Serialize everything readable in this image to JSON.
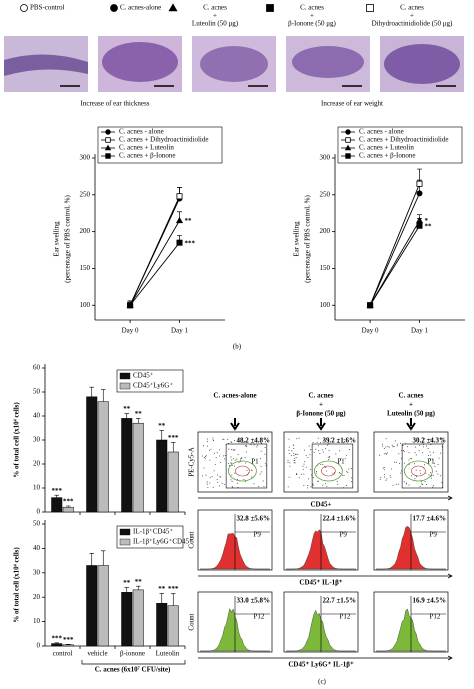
{
  "top_legend": [
    {
      "lines": [
        "PBS-control"
      ],
      "marker": "circle-open"
    },
    {
      "lines": [
        "C. acnes-alone"
      ],
      "marker": "circle"
    },
    {
      "lines": [
        "C. acnes",
        "+",
        "Luteolin (50 μg)"
      ],
      "marker": "triangle"
    },
    {
      "lines": [
        "C. acnes",
        "+",
        "β-Ionone (50 μg)"
      ],
      "marker": "square"
    },
    {
      "lines": [
        "C. acnes",
        "+",
        "Dihydroactinidiolide (50 μg)"
      ],
      "marker": "square-open"
    }
  ],
  "histology_captions": [
    "Increase of ear thickness",
    "Increase of ear weight"
  ],
  "panel_labels": [
    "(b)",
    "(c)"
  ],
  "chart_data": [
    {
      "type": "line",
      "y_label": [
        "Ear swelling",
        "(percentage of PBS control, %)"
      ],
      "categories": [
        "Day 0",
        "Day 1"
      ],
      "ylim": [
        80,
        300
      ],
      "yticks": [
        100,
        150,
        200,
        250,
        300
      ],
      "series": [
        {
          "name": "C. acnes - alone",
          "marker": "circle",
          "color": "#000",
          "values": [
            100,
            245
          ],
          "errors": [
            6,
            15
          ]
        },
        {
          "name": "C. acnes + Dihydroactinidiolide",
          "marker": "square-open",
          "color": "#000",
          "values": [
            100,
            248
          ],
          "errors": [
            6,
            12
          ]
        },
        {
          "name": "C. acnes + Luteolin",
          "marker": "triangle",
          "color": "#000",
          "values": [
            100,
            215
          ],
          "errors": [
            6,
            12
          ],
          "significance": [
            null,
            "**"
          ]
        },
        {
          "name": "C. acnes + β-Ionone",
          "marker": "square",
          "color": "#000",
          "values": [
            100,
            185
          ],
          "errors": [
            6,
            10
          ],
          "significance": [
            null,
            "***"
          ]
        }
      ]
    },
    {
      "type": "line",
      "y_label": [
        "Ear swelling",
        "(percentage of PBS control, %)"
      ],
      "categories": [
        "Day 0",
        "Day 1"
      ],
      "ylim": [
        80,
        300
      ],
      "yticks": [
        100,
        150,
        200,
        250,
        300
      ],
      "series": [
        {
          "name": "C. acnes - alone",
          "marker": "circle",
          "color": "#000",
          "values": [
            100,
            252
          ],
          "errors": [
            3,
            18
          ]
        },
        {
          "name": "C. acnes + Dihydroactinidiolide",
          "marker": "square-open",
          "color": "#000",
          "values": [
            100,
            265
          ],
          "errors": [
            3,
            20
          ]
        },
        {
          "name": "C. acnes + Luteolin",
          "marker": "triangle",
          "color": "#000",
          "values": [
            100,
            215
          ],
          "errors": [
            3,
            8
          ],
          "significance": [
            null,
            "*"
          ]
        },
        {
          "name": "C. acnes + β-Ionone",
          "marker": "square",
          "color": "#000",
          "values": [
            100,
            208
          ],
          "errors": [
            3,
            10
          ],
          "significance": [
            null,
            "**"
          ]
        }
      ]
    },
    {
      "type": "bar",
      "y_label": "% of total cell (x10⁴ cells)",
      "categories": [
        null,
        null,
        null,
        null
      ],
      "ylim": [
        0,
        60
      ],
      "yticks": [
        0,
        10,
        20,
        30,
        40,
        50,
        60
      ],
      "series": [
        {
          "name": "CD45⁺",
          "color": "#111111",
          "values": [
            6,
            48,
            39,
            30
          ],
          "errors": [
            1,
            4,
            2,
            4
          ],
          "significance": [
            "***",
            null,
            "**",
            "**"
          ]
        },
        {
          "name": "CD45⁺Ly6G⁺",
          "color": "#bbbbbb",
          "values": [
            2,
            46,
            37,
            25
          ],
          "errors": [
            0.5,
            5,
            2,
            4
          ],
          "significance": [
            "***",
            null,
            "**",
            "***"
          ]
        }
      ]
    },
    {
      "type": "bar",
      "y_label": "% of total cell (x10⁴ cells)",
      "categories": [
        "control",
        "vehicle",
        "β-ionone",
        "Luteolin"
      ],
      "x_group_label": "C. acnes (6x10⁷ CFU/site)",
      "ylim": [
        0,
        50
      ],
      "yticks": [
        0,
        10,
        20,
        30,
        40,
        50
      ],
      "series": [
        {
          "name": "IL-1β⁺CD45⁺",
          "color": "#111111",
          "values": [
            1,
            33,
            22,
            17.5
          ],
          "errors": [
            0.3,
            5,
            2,
            4
          ],
          "significance": [
            "***",
            null,
            "**",
            "**"
          ]
        },
        {
          "name": "IL-1β⁺Ly6G⁺CD45⁺",
          "color": "#bbbbbb",
          "values": [
            0.5,
            33,
            23,
            16.5
          ],
          "errors": [
            0.2,
            6,
            1.5,
            5
          ],
          "significance": [
            "***",
            null,
            "**",
            "***"
          ]
        }
      ]
    }
  ],
  "flow_cytometry": {
    "columns": [
      [
        "C. acnes-alone"
      ],
      [
        "C. acnes",
        "+",
        "β-Ionone (50 μg)"
      ],
      [
        "C. acnes",
        "+",
        "Luteolin (50 μg)"
      ]
    ],
    "rows": [
      {
        "kind": "dot",
        "x_label": "CD45+",
        "y_label": "PE-Cy5-A",
        "gate": "P1",
        "percentages": [
          "48.2 ±4.8%",
          "39.2 ±1.6%",
          "30.2 ±4.3%"
        ]
      },
      {
        "kind": "hist",
        "color": "#e03030",
        "x_label": "CD45⁺ IL-1β⁺",
        "y_label": "Count",
        "gate": "P9",
        "percentages": [
          "32.8 ±5.6%",
          "22.4 ±1.6%",
          "17.7 ±4.6%"
        ]
      },
      {
        "kind": "hist",
        "color": "#7cb83a",
        "x_label": "CD45⁺ Ly6G⁺ IL-1β⁺",
        "y_label": "Count",
        "gate": "P12",
        "percentages": [
          "33.0 ±5.8%",
          "22.7 ±1.5%",
          "16.9 ±4.5%"
        ]
      }
    ]
  }
}
